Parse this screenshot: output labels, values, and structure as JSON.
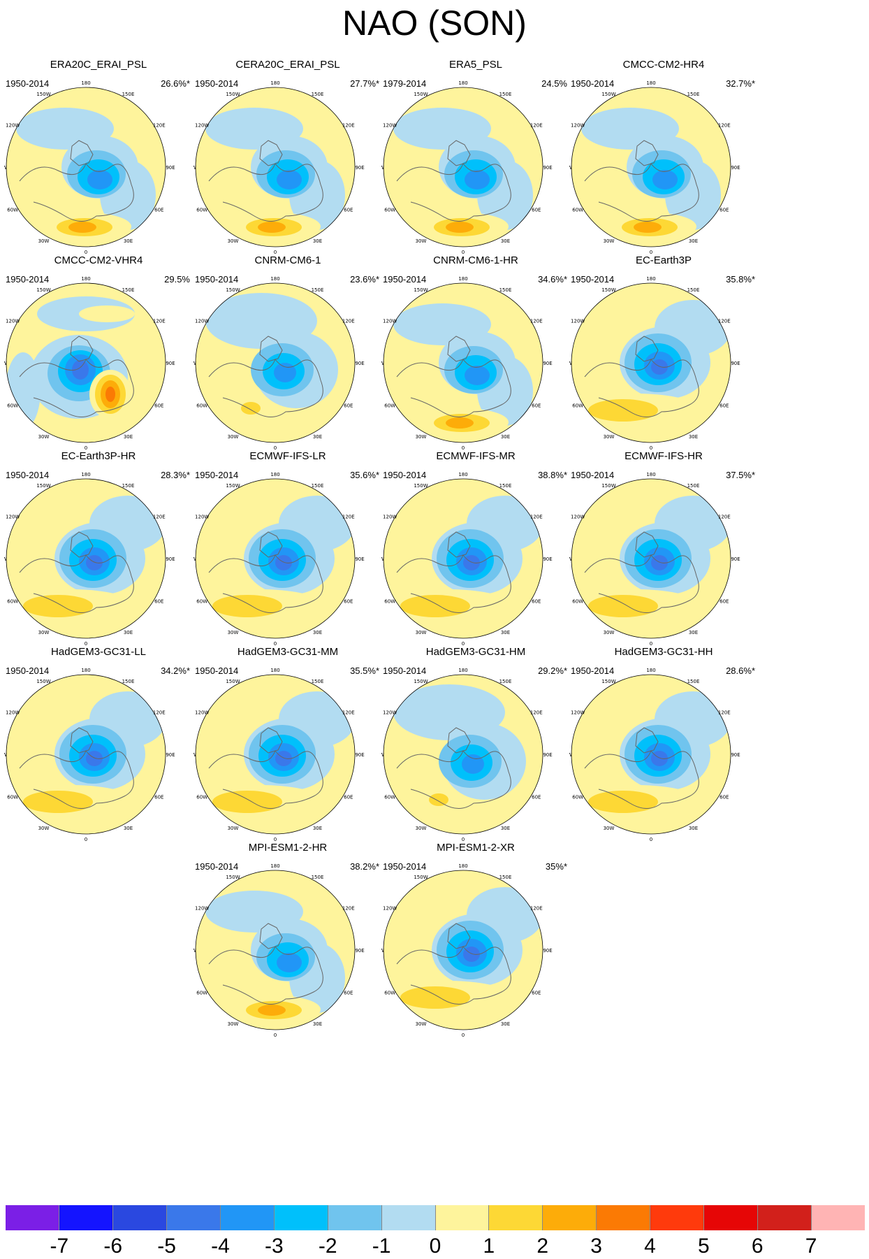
{
  "figure_title": "NAO (SON)",
  "lon_labels": [
    "180",
    "150E",
    "120E",
    "90E",
    "60E",
    "30E",
    "0",
    "30W",
    "60W",
    "90W",
    "120W",
    "150W"
  ],
  "colors": {
    "-7": "#7b1fe6",
    "-6": "#1414ff",
    "-5": "#2a48e0",
    "-4": "#3a78ea",
    "-3": "#2196f6",
    "-2": "#00c0fb",
    "-1": "#70c4ee",
    "0": "#b2dcf1",
    "1": "#fef49c",
    "2": "#fdd835",
    "3": "#fdac09",
    "4": "#fb7a04",
    "5": "#ff3a0c",
    "6": "#e60606",
    "7": "#d2201b",
    "8": "#ffb4b4"
  },
  "colorbar": {
    "colors": [
      "#7b1fe6",
      "#1414ff",
      "#2a48e0",
      "#3a78ea",
      "#2196f6",
      "#00c0fb",
      "#70c4ee",
      "#b2dcf1",
      "#fef49c",
      "#fdd835",
      "#fdac09",
      "#fb7a04",
      "#ff3a0c",
      "#e60606",
      "#d2201b",
      "#ffb4b4"
    ],
    "labels": [
      "-7",
      "-6",
      "-5",
      "-4",
      "-3",
      "-2",
      "-1",
      "0",
      "1",
      "2",
      "3",
      "4",
      "5",
      "6",
      "7"
    ]
  },
  "panels": [
    {
      "name": "ERA20C_ERAI_PSL",
      "period": "1950-2014",
      "variance": "26.6%*",
      "pattern": "strong_ref"
    },
    {
      "name": "CERA20C_ERAI_PSL",
      "period": "1950-2014",
      "variance": "27.7%*",
      "pattern": "strong_ref"
    },
    {
      "name": "ERA5_PSL",
      "period": "1979-2014",
      "variance": "24.5%",
      "pattern": "strong_ref"
    },
    {
      "name": "CMCC-CM2-HR4",
      "period": "1950-2014",
      "variance": "32.7%*",
      "pattern": "strong_ref"
    },
    {
      "name": "CMCC-CM2-VHR4",
      "period": "1950-2014",
      "variance": "29.5%",
      "pattern": "strong_east"
    },
    {
      "name": "CNRM-CM6-1",
      "period": "1950-2014",
      "variance": "23.6%*",
      "pattern": "weak"
    },
    {
      "name": "CNRM-CM6-1-HR",
      "period": "1950-2014",
      "variance": "34.6%*",
      "pattern": "strong_ref"
    },
    {
      "name": "EC-Earth3P",
      "period": "1950-2014",
      "variance": "35.8%*",
      "pattern": "belt"
    },
    {
      "name": "EC-Earth3P-HR",
      "period": "1950-2014",
      "variance": "28.3%*",
      "pattern": "belt"
    },
    {
      "name": "ECMWF-IFS-LR",
      "period": "1950-2014",
      "variance": "35.6%*",
      "pattern": "belt"
    },
    {
      "name": "ECMWF-IFS-MR",
      "period": "1950-2014",
      "variance": "38.8%*",
      "pattern": "belt"
    },
    {
      "name": "ECMWF-IFS-HR",
      "period": "1950-2014",
      "variance": "37.5%*",
      "pattern": "belt"
    },
    {
      "name": "HadGEM3-GC31-LL",
      "period": "1950-2014",
      "variance": "34.2%*",
      "pattern": "belt"
    },
    {
      "name": "HadGEM3-GC31-MM",
      "period": "1950-2014",
      "variance": "35.5%*",
      "pattern": "belt"
    },
    {
      "name": "HadGEM3-GC31-HM",
      "period": "1950-2014",
      "variance": "29.2%*",
      "pattern": "weak"
    },
    {
      "name": "HadGEM3-GC31-HH",
      "period": "1950-2014",
      "variance": "28.6%*",
      "pattern": "belt"
    },
    {
      "name": "MPI-ESM1-2-HR",
      "period": "1950-2014",
      "variance": "38.2%*",
      "pattern": "strong_ref"
    },
    {
      "name": "MPI-ESM1-2-XR",
      "period": "1950-2014",
      "variance": "35%*",
      "pattern": "belt"
    }
  ]
}
